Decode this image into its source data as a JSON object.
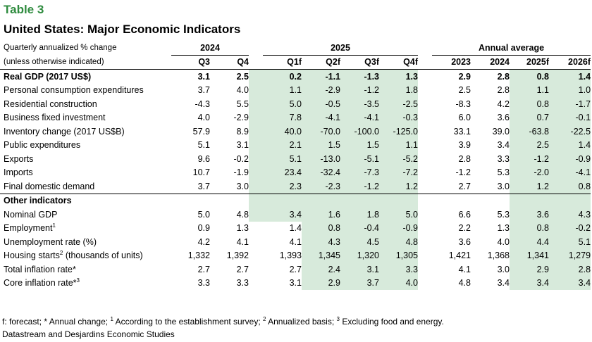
{
  "table_label": "Table 3",
  "title": "United States: Major Economic Indicators",
  "header": {
    "note_line1": "Quarterly annualized % change",
    "note_line2": "(unless otherwise indicated)",
    "group_2024": "2024",
    "group_2025": "2025",
    "group_annual": "Annual average",
    "columns": [
      "Q3",
      "Q4",
      "Q1f",
      "Q2f",
      "Q3f",
      "Q4f",
      "2023",
      "2024",
      "2025f",
      "2026f"
    ]
  },
  "rows": [
    {
      "label": "Real GDP (2017 US$)",
      "sup": "",
      "label_after": "",
      "values": [
        "3.1",
        "2.5",
        "0.2",
        "-1.1",
        "-1.3",
        "1.3",
        "2.9",
        "2.8",
        "0.8",
        "1.4"
      ]
    },
    {
      "label": "Personal consumption expenditures",
      "sup": "",
      "label_after": "",
      "values": [
        "3.7",
        "4.0",
        "1.1",
        "-2.9",
        "-1.2",
        "1.8",
        "2.5",
        "2.8",
        "1.1",
        "1.0"
      ]
    },
    {
      "label": "Residential construction",
      "sup": "",
      "label_after": "",
      "values": [
        "-4.3",
        "5.5",
        "5.0",
        "-0.5",
        "-3.5",
        "-2.5",
        "-8.3",
        "4.2",
        "0.8",
        "-1.7"
      ]
    },
    {
      "label": "Business fixed investment",
      "sup": "",
      "label_after": "",
      "values": [
        "4.0",
        "-2.9",
        "7.8",
        "-4.1",
        "-4.1",
        "-0.3",
        "6.0",
        "3.6",
        "0.7",
        "-0.1"
      ]
    },
    {
      "label": "Inventory change (2017 US$B)",
      "sup": "",
      "label_after": "",
      "values": [
        "57.9",
        "8.9",
        "40.0",
        "-70.0",
        "-100.0",
        "-125.0",
        "33.1",
        "39.0",
        "-63.8",
        "-22.5"
      ]
    },
    {
      "label": "Public expenditures",
      "sup": "",
      "label_after": "",
      "values": [
        "5.1",
        "3.1",
        "2.1",
        "1.5",
        "1.5",
        "1.1",
        "3.9",
        "3.4",
        "2.5",
        "1.4"
      ]
    },
    {
      "label": "Exports",
      "sup": "",
      "label_after": "",
      "values": [
        "9.6",
        "-0.2",
        "5.1",
        "-13.0",
        "-5.1",
        "-5.2",
        "2.8",
        "3.3",
        "-1.2",
        "-0.9"
      ]
    },
    {
      "label": "Imports",
      "sup": "",
      "label_after": "",
      "values": [
        "10.7",
        "-1.9",
        "23.4",
        "-32.4",
        "-7.3",
        "-7.2",
        "-1.2",
        "5.3",
        "-2.0",
        "-4.1"
      ]
    },
    {
      "label": "Final domestic demand",
      "sup": "",
      "label_after": "",
      "values": [
        "3.7",
        "3.0",
        "2.3",
        "-2.3",
        "-1.2",
        "1.2",
        "2.7",
        "3.0",
        "1.2",
        "0.8"
      ]
    }
  ],
  "other_heading": "Other indicators",
  "other_rows": [
    {
      "label": "Nominal GDP",
      "sup": "",
      "label_after": "",
      "values": [
        "5.0",
        "4.8",
        "3.4",
        "1.6",
        "1.8",
        "5.0",
        "6.6",
        "5.3",
        "3.6",
        "4.3"
      ]
    },
    {
      "label": "Employment",
      "sup": "1",
      "label_after": "",
      "values": [
        "0.9",
        "1.3",
        "1.4",
        "0.8",
        "-0.4",
        "-0.9",
        "2.2",
        "1.3",
        "0.8",
        "-0.2"
      ]
    },
    {
      "label": "Unemployment rate (%)",
      "sup": "",
      "label_after": "",
      "values": [
        "4.2",
        "4.1",
        "4.1",
        "4.3",
        "4.5",
        "4.8",
        "3.6",
        "4.0",
        "4.4",
        "5.1"
      ]
    },
    {
      "label": "Housing starts",
      "sup": "2",
      "label_after": " (thousands of units)",
      "values": [
        "1,332",
        "1,392",
        "1,393",
        "1,345",
        "1,320",
        "1,305",
        "1,421",
        "1,368",
        "1,341",
        "1,279"
      ]
    },
    {
      "label": "Total inflation rate*",
      "sup": "",
      "label_after": "",
      "values": [
        "2.7",
        "2.7",
        "2.7",
        "2.4",
        "3.1",
        "3.3",
        "4.1",
        "3.0",
        "2.9",
        "2.8"
      ]
    },
    {
      "label": "Core inflation rate*",
      "sup": "3",
      "label_after": "",
      "values": [
        "3.3",
        "3.3",
        "3.1",
        "2.9",
        "3.7",
        "4.0",
        "4.8",
        "3.4",
        "3.4",
        "3.4"
      ]
    }
  ],
  "footnote": {
    "p1": "f: forecast; * Annual change; ",
    "s1": "1",
    "p2": " According to the establishment survey; ",
    "s2": "2",
    "p3": " Annualized basis; ",
    "s3": "3",
    "p4": " Excluding food and energy."
  },
  "source": "Datastream and Desjardins Economic Studies",
  "colors": {
    "accent": "#2e8b3e",
    "shade": "#d7eadb"
  }
}
